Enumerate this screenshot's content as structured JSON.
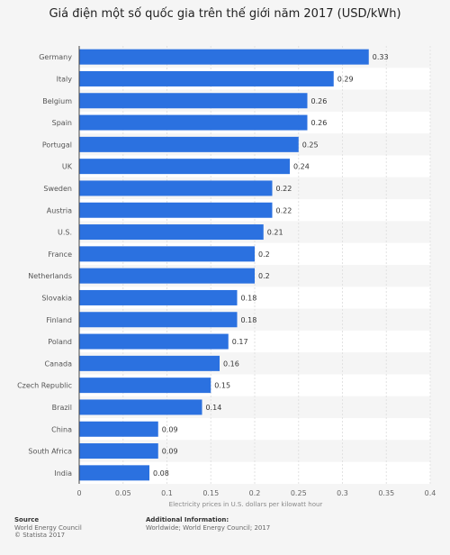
{
  "chart_data": {
    "type": "bar",
    "orientation": "horizontal",
    "title": "Giá điện một số quốc gia trên thế giới năm 2017 (USD/kWh)",
    "xlabel": "Electricity prices in U.S. dollars per kilowatt hour",
    "ylabel": "",
    "categories": [
      "Germany",
      "Italy",
      "Belgium",
      "Spain",
      "Portugal",
      "UK",
      "Sweden",
      "Austria",
      "U.S.",
      "France",
      "Netherlands",
      "Slovakia",
      "Finland",
      "Poland",
      "Canada",
      "Czech Republic",
      "Brazil",
      "China",
      "South Africa",
      "India"
    ],
    "values": [
      0.33,
      0.29,
      0.26,
      0.26,
      0.25,
      0.24,
      0.22,
      0.22,
      0.21,
      0.2,
      0.2,
      0.18,
      0.18,
      0.17,
      0.16,
      0.15,
      0.14,
      0.09,
      0.09,
      0.08
    ],
    "data_labels": [
      "0.33",
      "0.29",
      "0.26",
      "0.26",
      "0.25",
      "0.24",
      "0.22",
      "0.22",
      "0.21",
      "0.2",
      "0.2",
      "0.18",
      "0.18",
      "0.17",
      "0.16",
      "0.15",
      "0.14",
      "0.09",
      "0.09",
      "0.08"
    ],
    "xlim": [
      0,
      0.4
    ],
    "xticks": [
      "0",
      "0.05",
      "0.1",
      "0.15",
      "0.2",
      "0.25",
      "0.3",
      "0.35",
      "0.4"
    ],
    "grid": true,
    "bar_color": "#2b71e0"
  },
  "footer": {
    "source_title": "Source",
    "source_lines": [
      "World Energy Council",
      "© Statista 2017"
    ],
    "info_title": "Additional Information:",
    "info_text": "Worldwide; World Energy Council; 2017"
  }
}
